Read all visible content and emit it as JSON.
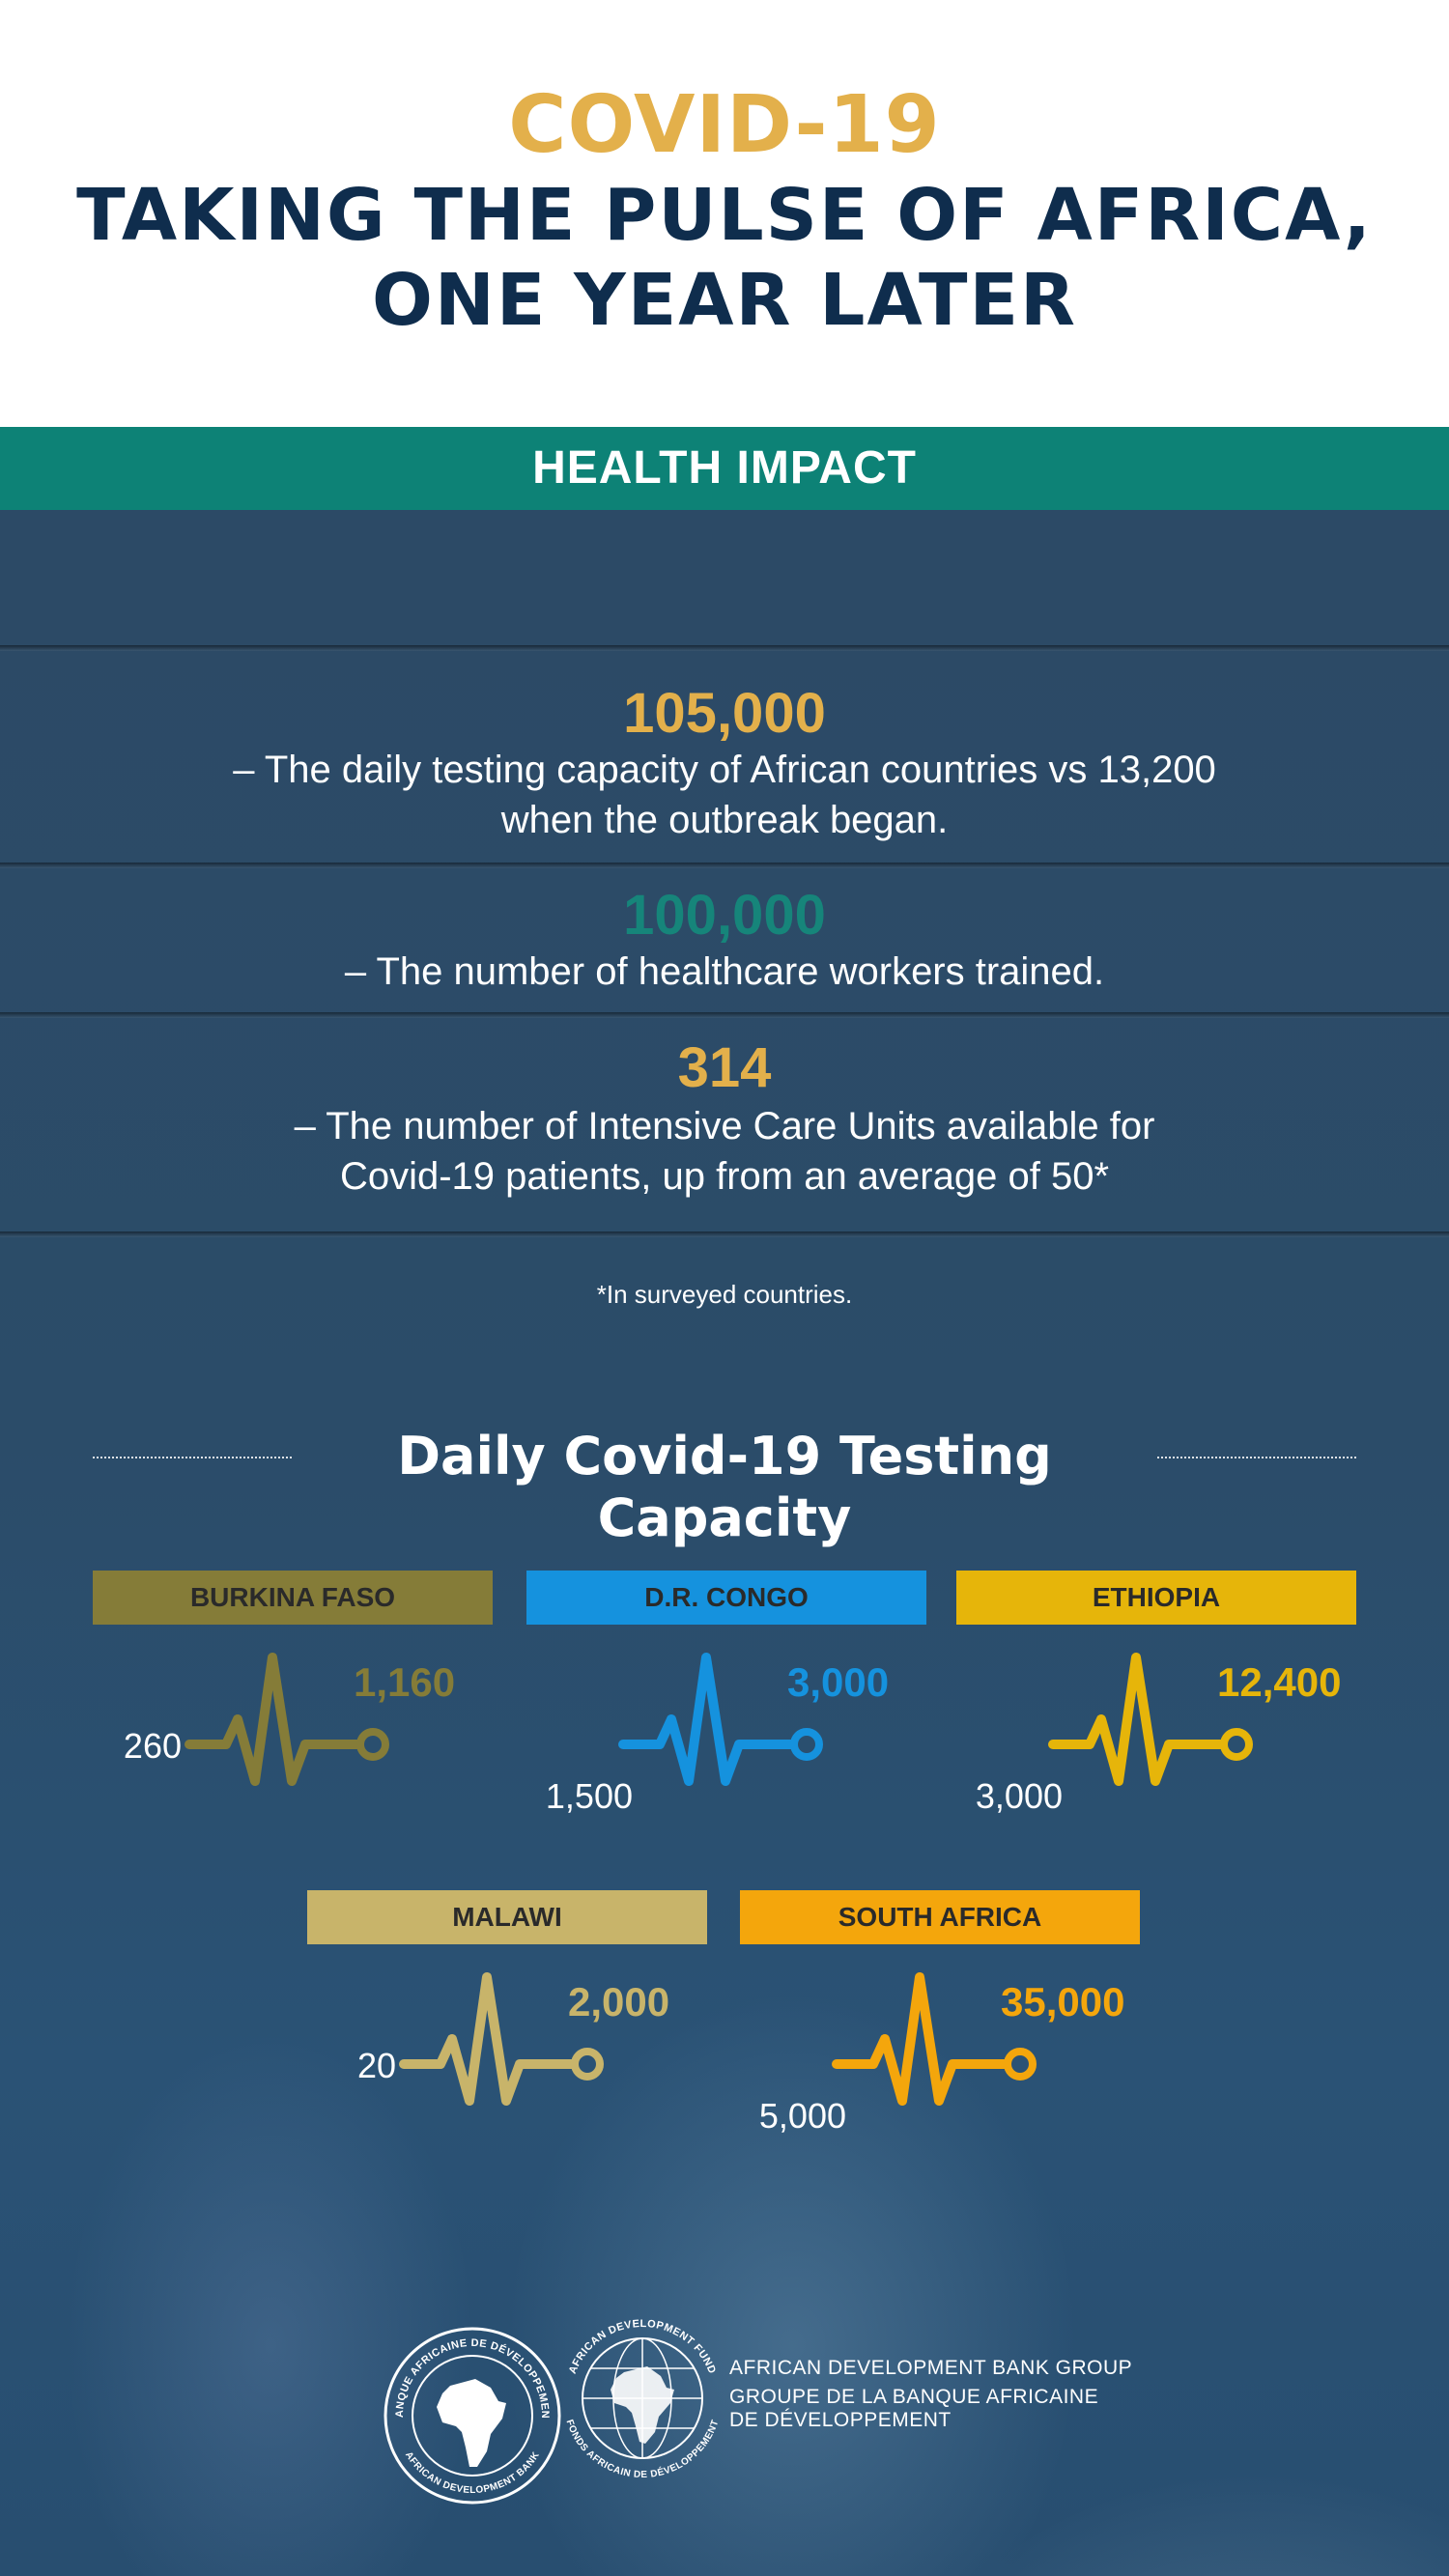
{
  "colors": {
    "navy": "#0f2d4d",
    "gold": "#e3b04b",
    "teal": "#16857a",
    "white": "#ffffff"
  },
  "header": {
    "title": "COVID-19",
    "subtitle_line1": "TAKING THE PULSE OF AFRICA,",
    "subtitle_line2": "ONE YEAR LATER"
  },
  "banner": {
    "label": "HEALTH IMPACT",
    "color": "#0d8276"
  },
  "stats": [
    {
      "value": "105,000",
      "color": "#e3b04b",
      "line1": "– The daily testing capacity of African countries vs 13,200",
      "line2": "when the outbreak began."
    },
    {
      "value": "100,000",
      "color": "#16857a",
      "line1": "– The number of healthcare workers trained.",
      "line2": ""
    },
    {
      "value": "314",
      "color": "#e3b04b",
      "line1": "– The number of Intensive Care Units available for",
      "line2": "Covid-19 patients, up from an average of 50*"
    }
  ],
  "footnote": "*In surveyed countries.",
  "testing": {
    "title": "Daily Covid-19 Testing Capacity",
    "countries": [
      {
        "name": "BURKINA FASO",
        "from": "260",
        "to": "1,160",
        "color": "#857c38"
      },
      {
        "name": "D.R. CONGO",
        "from": "1,500",
        "to": "3,000",
        "color": "#1592de"
      },
      {
        "name": "ETHIOPIA",
        "from": "3,000",
        "to": "12,400",
        "color": "#e6b50a"
      },
      {
        "name": "MALAWI",
        "from": "20",
        "to": "2,000",
        "color": "#c8b46a"
      },
      {
        "name": "SOUTH AFRICA",
        "from": "5,000",
        "to": "35,000",
        "color": "#f4a60c"
      }
    ]
  },
  "footer": {
    "logo1_top": "BANQUE AFRICAINE DE DÉVELOPPEMENT",
    "logo1_bottom": "AFRICAN DEVELOPMENT BANK",
    "logo2_top": "AFRICAN DEVELOPMENT FUND",
    "logo2_bottom": "FONDS AFRICAIN DE DÉVELOPPEMENT",
    "org_en": "AFRICAN DEVELOPMENT BANK GROUP",
    "org_fr_line1": "GROUPE DE LA BANQUE AFRICAINE",
    "org_fr_line2": "DE DÉVELOPPEMENT"
  }
}
